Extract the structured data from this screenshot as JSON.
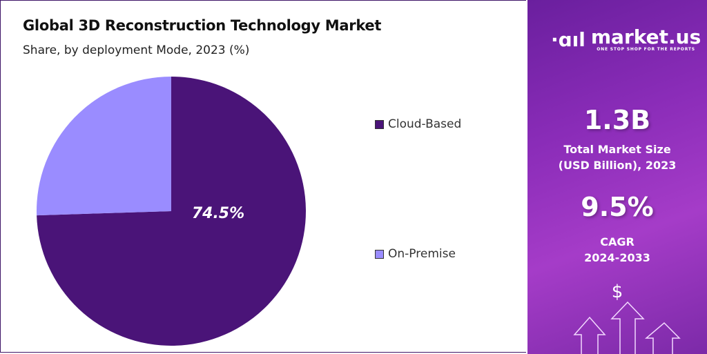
{
  "chart_data": {
    "type": "pie",
    "title": "Global 3D Reconstruction Technology Market",
    "subtitle": "Share, by deployment Mode, 2023 (%)",
    "slices": [
      {
        "name": "Cloud-Based",
        "value": 74.5,
        "color": "#4a1478",
        "label": "74.5%"
      },
      {
        "name": "On-Premise",
        "value": 25.5,
        "color": "#9a8cff"
      }
    ],
    "legend_placement": "right"
  },
  "sidebar": {
    "brand": "market.us",
    "tagline": "ONE STOP SHOP FOR THE REPORTS",
    "market_size": "1.3B",
    "market_size_label_1": "Total Market Size",
    "market_size_label_2": "(USD Billion), 2023",
    "cagr": "9.5%",
    "cagr_label_1": "CAGR",
    "cagr_label_2": "2024-2033",
    "dollar": "$"
  }
}
